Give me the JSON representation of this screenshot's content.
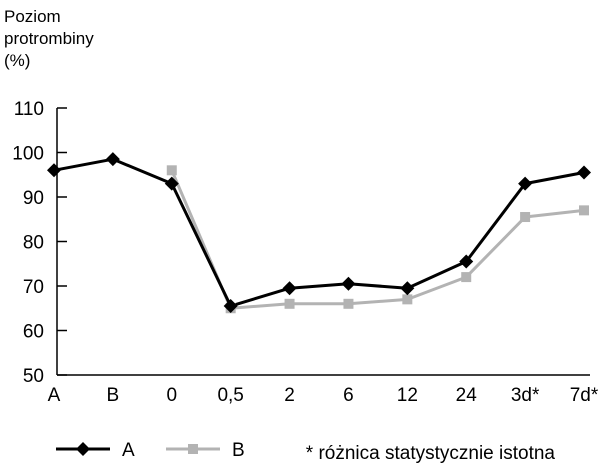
{
  "chart_data": {
    "type": "line",
    "ylabel_lines": [
      "Poziom",
      "protrombiny",
      "(%)"
    ],
    "categories": [
      "A",
      "B",
      "0",
      "0,5",
      "2",
      "6",
      "12",
      "24",
      "3d*",
      "7d*"
    ],
    "yticks": [
      "50",
      "60",
      "70",
      "80",
      "90",
      "100",
      "110"
    ],
    "ylim": [
      50,
      110
    ],
    "series": [
      {
        "name": "A",
        "marker": "diamond",
        "color": "#000000",
        "values": [
          96,
          98.5,
          93,
          65.5,
          69.5,
          70.5,
          69.5,
          75.5,
          93,
          95.5
        ]
      },
      {
        "name": "B",
        "marker": "square",
        "color": "#b3b3b3",
        "values": [
          null,
          null,
          96,
          65,
          66,
          66,
          67,
          72,
          85.5,
          87
        ]
      }
    ],
    "footnote": "* różnica statystycznie istotna",
    "grid": false,
    "legend_position": "bottom"
  }
}
